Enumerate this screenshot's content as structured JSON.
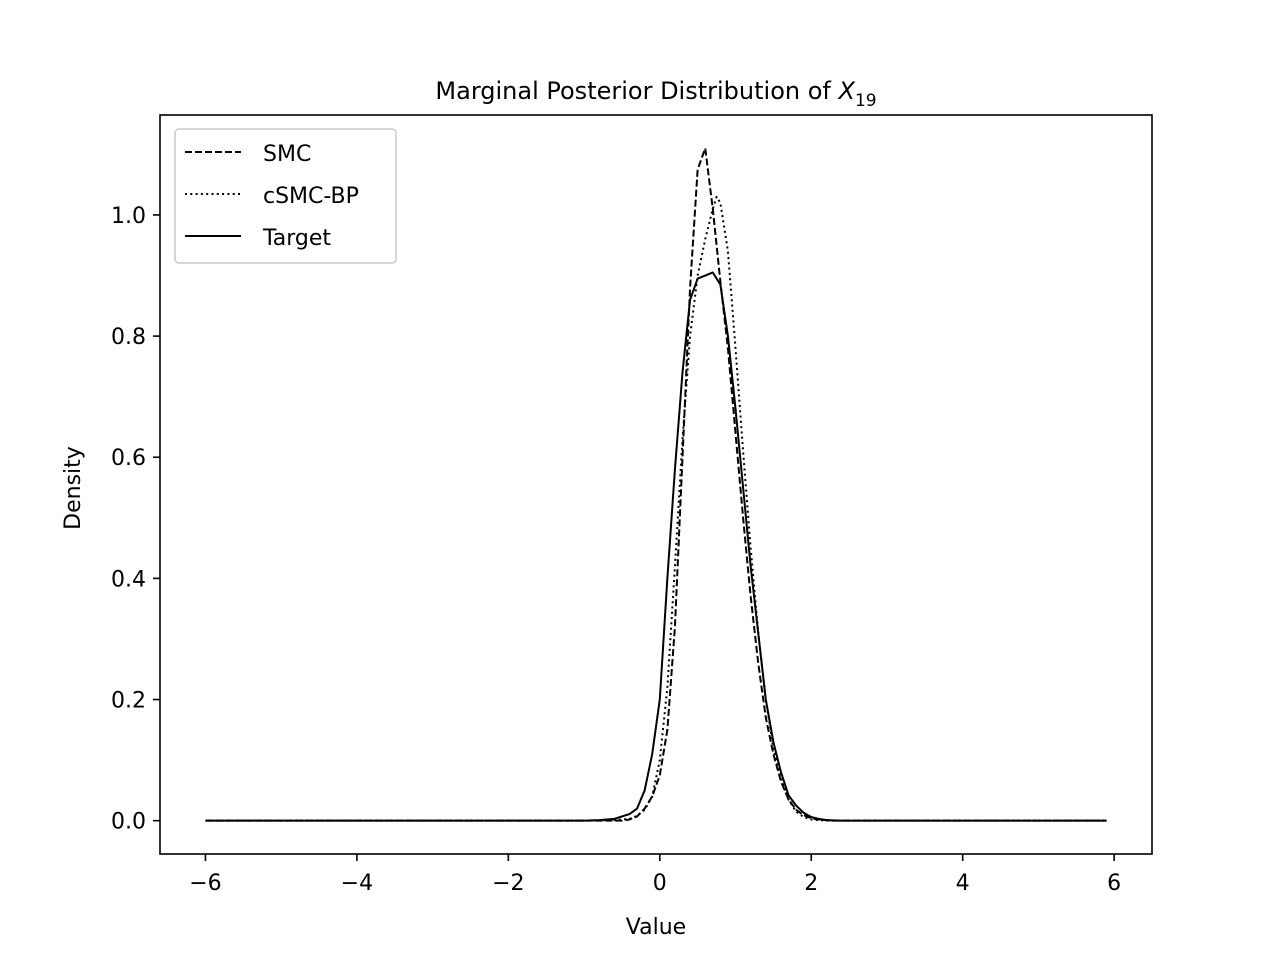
{
  "chart_data": {
    "type": "line",
    "title": "Marginal Posterior Distribution of ",
    "title_math_symbol": "X",
    "title_math_subscript": "19",
    "xlabel": "Value",
    "ylabel": "Density",
    "xlim": [
      -6.6,
      6.5
    ],
    "ylim": [
      -0.055,
      1.165
    ],
    "xticks": [
      -6,
      -4,
      -2,
      0,
      2,
      4,
      6
    ],
    "xtick_labels": [
      "−6",
      "−4",
      "−2",
      "0",
      "2",
      "4",
      "6"
    ],
    "yticks": [
      0.0,
      0.2,
      0.4,
      0.6,
      0.8,
      1.0
    ],
    "ytick_labels": [
      "0.0",
      "0.2",
      "0.4",
      "0.6",
      "0.8",
      "1.0"
    ],
    "grid": false,
    "legend_position": "upper-left",
    "series": [
      {
        "name": "SMC",
        "style": "dashed",
        "color": "#000000",
        "x": [
          -6.0,
          -1.0,
          -0.5,
          -0.4,
          -0.3,
          -0.2,
          -0.1,
          0.0,
          0.1,
          0.2,
          0.3,
          0.4,
          0.5,
          0.6,
          0.7,
          0.8,
          0.9,
          1.0,
          1.1,
          1.2,
          1.3,
          1.4,
          1.5,
          1.6,
          1.7,
          1.8,
          1.9,
          2.0,
          2.1,
          2.2,
          2.3,
          2.5,
          3.0,
          5.9
        ],
        "y": [
          0.0,
          0.0,
          0.0,
          0.002,
          0.007,
          0.02,
          0.04,
          0.075,
          0.15,
          0.32,
          0.6,
          0.88,
          1.075,
          1.11,
          1.01,
          0.89,
          0.78,
          0.64,
          0.5,
          0.37,
          0.26,
          0.17,
          0.11,
          0.065,
          0.035,
          0.018,
          0.009,
          0.004,
          0.002,
          0.001,
          0.0,
          0.0,
          0.0,
          0.0
        ]
      },
      {
        "name": "cSMC-BP",
        "style": "dotted",
        "color": "#000000",
        "x": [
          -6.0,
          -1.0,
          -0.6,
          -0.4,
          -0.3,
          -0.2,
          -0.1,
          0.0,
          0.1,
          0.2,
          0.3,
          0.4,
          0.5,
          0.6,
          0.7,
          0.75,
          0.8,
          0.9,
          1.0,
          1.1,
          1.2,
          1.3,
          1.4,
          1.5,
          1.6,
          1.7,
          1.8,
          1.9,
          2.0,
          2.1,
          2.2,
          2.5,
          3.0,
          5.9
        ],
        "y": [
          0.0,
          0.0,
          0.001,
          0.003,
          0.008,
          0.018,
          0.04,
          0.1,
          0.22,
          0.42,
          0.63,
          0.8,
          0.9,
          0.96,
          1.01,
          1.03,
          1.02,
          0.94,
          0.78,
          0.61,
          0.45,
          0.31,
          0.2,
          0.12,
          0.07,
          0.035,
          0.015,
          0.006,
          0.002,
          0.001,
          0.0,
          0.0,
          0.0,
          0.0
        ]
      },
      {
        "name": "Target",
        "style": "solid",
        "color": "#000000",
        "x": [
          -6.0,
          -1.0,
          -0.8,
          -0.6,
          -0.4,
          -0.3,
          -0.2,
          -0.1,
          0.0,
          0.1,
          0.2,
          0.3,
          0.4,
          0.5,
          0.6,
          0.7,
          0.8,
          0.9,
          1.0,
          1.1,
          1.2,
          1.3,
          1.4,
          1.5,
          1.6,
          1.7,
          1.8,
          1.9,
          2.0,
          2.1,
          2.2,
          2.4,
          2.6,
          3.0,
          5.9
        ],
        "y": [
          0.0,
          0.0,
          0.001,
          0.003,
          0.011,
          0.02,
          0.05,
          0.11,
          0.2,
          0.4,
          0.58,
          0.74,
          0.86,
          0.895,
          0.9,
          0.905,
          0.885,
          0.8,
          0.68,
          0.55,
          0.42,
          0.31,
          0.2,
          0.13,
          0.08,
          0.042,
          0.025,
          0.013,
          0.006,
          0.003,
          0.001,
          0.0,
          0.0,
          0.0,
          0.0
        ]
      }
    ]
  }
}
